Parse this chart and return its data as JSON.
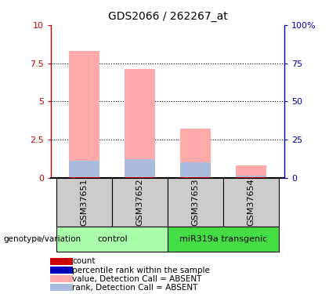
{
  "title": "GDS2066 / 262267_at",
  "samples": [
    "GSM37651",
    "GSM37652",
    "GSM37653",
    "GSM37654"
  ],
  "value_bars": [
    8.3,
    7.1,
    3.2,
    0.8
  ],
  "rank_bars": [
    1.1,
    1.2,
    1.0,
    0.13
  ],
  "count_vals": [
    0.07,
    0.07,
    0.07,
    0.07
  ],
  "ylim_left": [
    0,
    10
  ],
  "ylim_right": [
    0,
    100
  ],
  "yticks_left": [
    0,
    2.5,
    5.0,
    7.5,
    10
  ],
  "yticks_right": [
    0,
    25,
    50,
    75,
    100
  ],
  "ytick_labels_left": [
    "0",
    "2.5",
    "5",
    "7.5",
    "10"
  ],
  "ytick_labels_right": [
    "0",
    "25",
    "50",
    "75",
    "100%"
  ],
  "groups": [
    {
      "label": "control",
      "samples": [
        0,
        1
      ],
      "color": "#aaffaa"
    },
    {
      "label": "miR319a transgenic",
      "samples": [
        2,
        3
      ],
      "color": "#44dd44"
    }
  ],
  "bar_width": 0.55,
  "value_color": "#FFAAAA",
  "rank_color": "#AABBDD",
  "count_color": "#CC0000",
  "percentile_color": "#0000BB",
  "left_axis_color": "#CC0000",
  "right_axis_color": "#0000BB",
  "bg_sample_labels": "#CCCCCC",
  "legend_items": [
    {
      "label": "count",
      "color": "#CC0000"
    },
    {
      "label": "percentile rank within the sample",
      "color": "#0000BB"
    },
    {
      "label": "value, Detection Call = ABSENT",
      "color": "#FFAAAA"
    },
    {
      "label": "rank, Detection Call = ABSENT",
      "color": "#AABBDD"
    }
  ]
}
